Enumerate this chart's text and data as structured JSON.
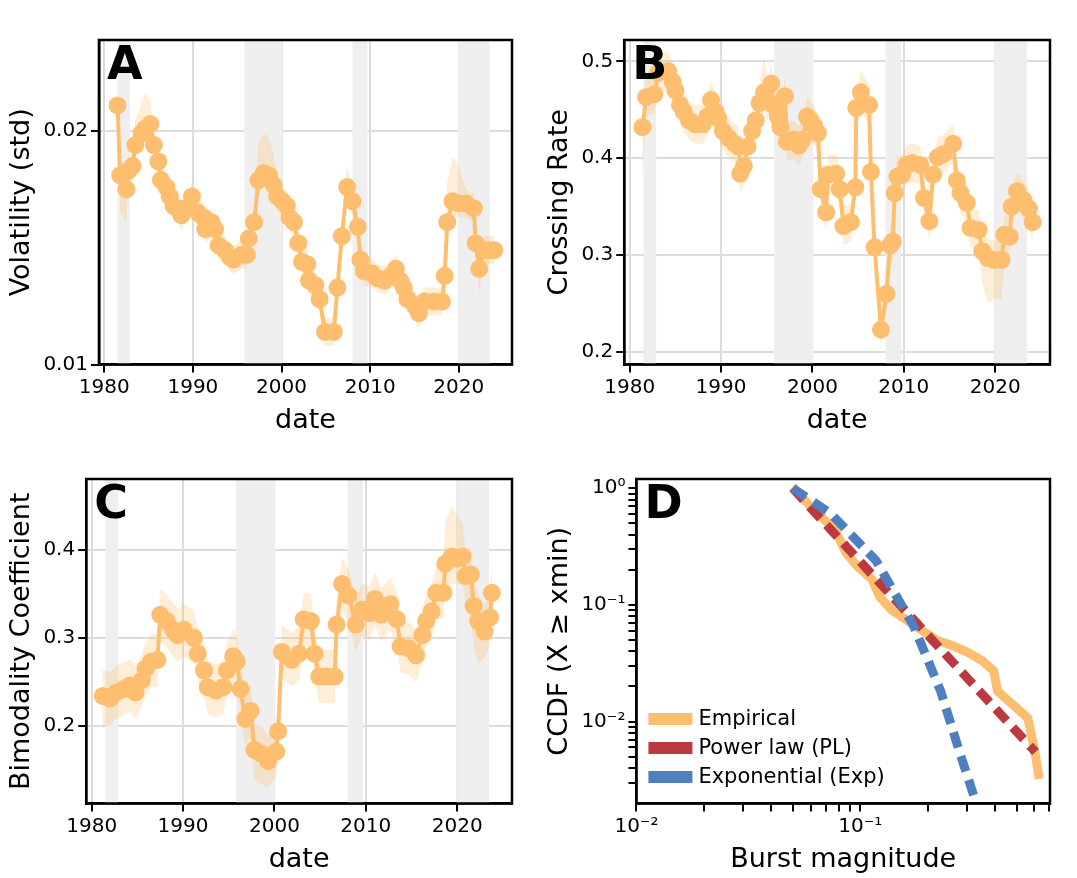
{
  "chart_data": [
    {
      "type": "line",
      "title": "A",
      "xlabel": "date",
      "ylabel": "Volatility (std)",
      "xlim": [
        1979.4,
        2026
      ],
      "xticks": [
        1980,
        1990,
        2000,
        2010,
        2020
      ],
      "ylim": [
        0.01,
        0.0239
      ],
      "yticks": [
        0.01,
        0.02
      ],
      "grid": true,
      "marker": "circle",
      "bands": [
        {
          "axis": "x",
          "from": 1981.5,
          "to": 1982.9,
          "color": "#efefef"
        },
        {
          "axis": "x",
          "from": 1995.8,
          "to": 2000.1,
          "color": "#efefef"
        },
        {
          "axis": "x",
          "from": 2008.0,
          "to": 2009.7,
          "color": "#efefef"
        },
        {
          "axis": "x",
          "from": 2019.9,
          "to": 2023.5,
          "color": "#efefef"
        }
      ],
      "series": [
        {
          "color": "#fdbf6f",
          "x": [
            1981.5,
            1981.8,
            1982.5,
            1982.7,
            1983.2,
            1983.5,
            1984.2,
            1984.6,
            1985.2,
            1985.6,
            1986.1,
            1986.4,
            1987.0,
            1987.4,
            1987.8,
            1988.2,
            1988.7,
            1989.3,
            1989.9,
            1990.6,
            1991.2,
            1991.4,
            1992.1,
            1992.5,
            1992.9,
            1993.6,
            1994.2,
            1994.6,
            1995.5,
            1996.1,
            1996.3,
            1996.9,
            1997.4,
            1998.0,
            1998.6,
            1999.1,
            1999.5,
            2000.1,
            2000.6,
            2000.9,
            2001.4,
            2001.9,
            2002.3,
            2002.9,
            2003.1,
            2003.8,
            2004.3,
            2004.9,
            2005.9,
            2006.3,
            2006.8,
            2007.4,
            2008.0,
            2008.6,
            2008.9,
            2009.3,
            2010.2,
            2010.8,
            2011.6,
            2012.3,
            2012.9,
            2013.4,
            2013.8,
            2014.2,
            2015.1,
            2015.5,
            2016.1,
            2017.2,
            2018.1,
            2018.4,
            2018.7,
            2019.3,
            2020.0,
            2020.8,
            2021.7,
            2021.9,
            2022.3,
            2022.8,
            2023.4,
            2024.0
          ],
          "values": [
            0.0211,
            0.0181,
            0.0175,
            0.0183,
            0.0185,
            0.0194,
            0.0199,
            0.0201,
            0.0203,
            0.0194,
            0.0187,
            0.0179,
            0.0176,
            0.0172,
            0.0168,
            0.0167,
            0.0164,
            0.0167,
            0.0172,
            0.0165,
            0.0163,
            0.0158,
            0.0161,
            0.0158,
            0.0151,
            0.0149,
            0.0146,
            0.0145,
            0.0147,
            0.0147,
            0.0154,
            0.0161,
            0.0179,
            0.0182,
            0.0181,
            0.0177,
            0.0172,
            0.017,
            0.0168,
            0.0163,
            0.0161,
            0.0152,
            0.0144,
            0.0143,
            0.0136,
            0.0134,
            0.0128,
            0.0114,
            0.0114,
            0.0133,
            0.0155,
            0.0176,
            0.017,
            0.0159,
            0.0145,
            0.014,
            0.0139,
            0.0137,
            0.0136,
            0.0138,
            0.0141,
            0.0136,
            0.0133,
            0.0128,
            0.0125,
            0.0122,
            0.0127,
            0.0127,
            0.0127,
            0.0138,
            0.0161,
            0.017,
            0.0169,
            0.0169,
            0.0167,
            0.0152,
            0.0141,
            0.0149,
            0.0149,
            0.0149
          ],
          "lower": [
            0.0205,
            0.0165,
            0.0161,
            0.0177,
            0.0179,
            0.0188,
            0.0193,
            0.0195,
            0.0197,
            0.0188,
            0.0181,
            0.0173,
            0.017,
            0.0166,
            0.0162,
            0.0161,
            0.0158,
            0.0161,
            0.0166,
            0.0159,
            0.0157,
            0.0152,
            0.0155,
            0.0152,
            0.0145,
            0.0143,
            0.014,
            0.0139,
            0.0141,
            0.0141,
            0.0148,
            0.0155,
            0.0173,
            0.0176,
            0.0175,
            0.0171,
            0.0166,
            0.0164,
            0.0162,
            0.0157,
            0.0155,
            0.0146,
            0.0138,
            0.0137,
            0.013,
            0.0128,
            0.0122,
            0.0108,
            0.0108,
            0.0127,
            0.0149,
            0.017,
            0.0164,
            0.0153,
            0.0139,
            0.0134,
            0.0133,
            0.0131,
            0.013,
            0.0132,
            0.0135,
            0.013,
            0.0127,
            0.0122,
            0.0119,
            0.0116,
            0.0121,
            0.0121,
            0.0121,
            0.0132,
            0.0155,
            0.0164,
            0.0163,
            0.0163,
            0.0161,
            0.0146,
            0.0131,
            0.0143,
            0.0143,
            0.0143
          ],
          "upper": [
            0.0217,
            0.0187,
            0.0181,
            0.0189,
            0.0191,
            0.0205,
            0.0212,
            0.0216,
            0.0213,
            0.02,
            0.0193,
            0.0185,
            0.0182,
            0.0178,
            0.0174,
            0.0173,
            0.017,
            0.0173,
            0.0178,
            0.0171,
            0.0169,
            0.0164,
            0.0167,
            0.0164,
            0.0157,
            0.0155,
            0.0152,
            0.0151,
            0.0153,
            0.0153,
            0.016,
            0.0167,
            0.0195,
            0.0199,
            0.0197,
            0.019,
            0.018,
            0.0176,
            0.0174,
            0.0169,
            0.0167,
            0.0158,
            0.015,
            0.0149,
            0.0142,
            0.014,
            0.0134,
            0.012,
            0.012,
            0.0139,
            0.0161,
            0.0185,
            0.0176,
            0.0165,
            0.0151,
            0.0146,
            0.0145,
            0.0143,
            0.0142,
            0.0144,
            0.0147,
            0.0142,
            0.0139,
            0.0134,
            0.0131,
            0.0128,
            0.0133,
            0.0133,
            0.0133,
            0.0144,
            0.0178,
            0.0189,
            0.0185,
            0.0175,
            0.0173,
            0.0158,
            0.0147,
            0.0155,
            0.0155,
            0.0155
          ]
        }
      ]
    },
    {
      "type": "line",
      "title": "B",
      "xlabel": "date",
      "ylabel": "Crossing Rate",
      "xlim": [
        1979.4,
        2026
      ],
      "xticks": [
        1980,
        1990,
        2000,
        2010,
        2020
      ],
      "ylim": [
        0.187,
        0.522
      ],
      "yticks": [
        0.2,
        0.3,
        0.4,
        0.5
      ],
      "grid": true,
      "marker": "circle",
      "bands": [
        {
          "axis": "x",
          "from": 1981.5,
          "to": 1982.9,
          "color": "#efefef"
        },
        {
          "axis": "x",
          "from": 1995.8,
          "to": 2000.1,
          "color": "#efefef"
        },
        {
          "axis": "x",
          "from": 2008.0,
          "to": 2009.7,
          "color": "#efefef"
        },
        {
          "axis": "x",
          "from": 2019.9,
          "to": 2023.5,
          "color": "#efefef"
        }
      ],
      "series": [
        {
          "color": "#fdbf6f",
          "x": [
            1981.4,
            1981.8,
            1982.7,
            1983.1,
            1984.2,
            1984.7,
            1985.0,
            1985.5,
            1985.9,
            1986.5,
            1987.2,
            1988.0,
            1988.5,
            1988.9,
            1989.4,
            1989.7,
            1990.2,
            1990.8,
            1991.5,
            1991.9,
            1992.1,
            1992.5,
            1992.9,
            1993.4,
            1993.8,
            1994.2,
            1994.7,
            1995.1,
            1995.5,
            1995.7,
            1996.2,
            1996.5,
            1997.0,
            1997.2,
            1997.9,
            1998.5,
            1998.9,
            1999.4,
            1999.8,
            2000.2,
            2000.6,
            2000.9,
            2001.5,
            2001.7,
            2002.6,
            2003.0,
            2003.4,
            2004.2,
            2004.7,
            2004.8,
            2005.3,
            2006.2,
            2006.4,
            2006.8,
            2007.5,
            2008.1,
            2008.5,
            2008.8,
            2009.0,
            2009.3,
            2009.8,
            2010.3,
            2010.9,
            2011.8,
            2012.2,
            2012.8,
            2013.2,
            2013.7,
            2014.3,
            2015.4,
            2015.8,
            2016.2,
            2016.9,
            2017.3,
            2018.2,
            2018.6,
            2019.2,
            2019.9,
            2020.7,
            2021.0,
            2021.6,
            2021.8,
            2022.4,
            2023.1,
            2023.7,
            2024.1
          ],
          "values": [
            0.432,
            0.463,
            0.466,
            0.488,
            0.49,
            0.479,
            0.47,
            0.455,
            0.448,
            0.439,
            0.435,
            0.435,
            0.443,
            0.46,
            0.448,
            0.441,
            0.428,
            0.421,
            0.415,
            0.412,
            0.384,
            0.392,
            0.412,
            0.428,
            0.439,
            0.457,
            0.468,
            0.459,
            0.477,
            0.455,
            0.443,
            0.432,
            0.464,
            0.417,
            0.419,
            0.413,
            0.419,
            0.443,
            0.439,
            0.433,
            0.426,
            0.368,
            0.344,
            0.383,
            0.384,
            0.368,
            0.33,
            0.334,
            0.37,
            0.452,
            0.468,
            0.455,
            0.386,
            0.308,
            0.223,
            0.26,
            0.31,
            0.314,
            0.364,
            0.381,
            0.383,
            0.393,
            0.395,
            0.393,
            0.359,
            0.335,
            0.383,
            0.401,
            0.404,
            0.415,
            0.377,
            0.364,
            0.354,
            0.328,
            0.326,
            0.304,
            0.297,
            0.295,
            0.295,
            0.321,
            0.319,
            0.35,
            0.366,
            0.357,
            0.348,
            0.334
          ],
          "lower": [
            0.38,
            0.443,
            0.446,
            0.468,
            0.47,
            0.459,
            0.45,
            0.435,
            0.428,
            0.419,
            0.415,
            0.415,
            0.423,
            0.44,
            0.428,
            0.421,
            0.408,
            0.401,
            0.395,
            0.392,
            0.364,
            0.372,
            0.392,
            0.408,
            0.419,
            0.437,
            0.448,
            0.439,
            0.457,
            0.435,
            0.423,
            0.412,
            0.444,
            0.397,
            0.399,
            0.393,
            0.399,
            0.423,
            0.419,
            0.413,
            0.406,
            0.348,
            0.324,
            0.363,
            0.364,
            0.348,
            0.31,
            0.314,
            0.35,
            0.432,
            0.448,
            0.435,
            0.366,
            0.288,
            0.205,
            0.24,
            0.29,
            0.294,
            0.344,
            0.361,
            0.363,
            0.373,
            0.375,
            0.373,
            0.339,
            0.315,
            0.363,
            0.381,
            0.384,
            0.395,
            0.357,
            0.344,
            0.334,
            0.308,
            0.306,
            0.27,
            0.25,
            0.255,
            0.255,
            0.29,
            0.299,
            0.33,
            0.346,
            0.337,
            0.328,
            0.314
          ],
          "upper": [
            0.452,
            0.483,
            0.486,
            0.508,
            0.51,
            0.499,
            0.49,
            0.475,
            0.468,
            0.459,
            0.455,
            0.455,
            0.463,
            0.48,
            0.468,
            0.461,
            0.448,
            0.441,
            0.435,
            0.432,
            0.404,
            0.412,
            0.432,
            0.448,
            0.459,
            0.477,
            0.505,
            0.479,
            0.497,
            0.475,
            0.463,
            0.452,
            0.484,
            0.437,
            0.439,
            0.433,
            0.439,
            0.463,
            0.459,
            0.453,
            0.446,
            0.388,
            0.364,
            0.403,
            0.404,
            0.388,
            0.35,
            0.354,
            0.39,
            0.472,
            0.49,
            0.475,
            0.406,
            0.328,
            0.243,
            0.28,
            0.33,
            0.334,
            0.384,
            0.401,
            0.403,
            0.413,
            0.415,
            0.413,
            0.379,
            0.355,
            0.403,
            0.421,
            0.424,
            0.435,
            0.397,
            0.384,
            0.374,
            0.348,
            0.346,
            0.324,
            0.317,
            0.315,
            0.315,
            0.341,
            0.339,
            0.37,
            0.386,
            0.377,
            0.368,
            0.354
          ]
        }
      ]
    },
    {
      "type": "line",
      "title": "C",
      "xlabel": "date",
      "ylabel": "Bimodality Coefficient",
      "xlim": [
        1979.4,
        2026
      ],
      "xticks": [
        1980,
        1990,
        2000,
        2010,
        2020
      ],
      "ylim": [
        0.112,
        0.48
      ],
      "yticks": [
        0.2,
        0.3,
        0.4
      ],
      "grid": true,
      "marker": "circle",
      "bands": [
        {
          "axis": "x",
          "from": 1981.5,
          "to": 1982.9,
          "color": "#efefef"
        },
        {
          "axis": "x",
          "from": 1995.8,
          "to": 2000.1,
          "color": "#efefef"
        },
        {
          "axis": "x",
          "from": 2008.0,
          "to": 2009.7,
          "color": "#efefef"
        },
        {
          "axis": "x",
          "from": 2019.9,
          "to": 2023.5,
          "color": "#efefef"
        }
      ],
      "series": [
        {
          "color": "#fdbf6f",
          "x": [
            1981.2,
            1982.0,
            1982.7,
            1983.5,
            1984.2,
            1984.8,
            1985.5,
            1985.9,
            1986.5,
            1987.2,
            1987.5,
            1988.2,
            1988.9,
            1989.4,
            1990.1,
            1991.2,
            1991.6,
            1992.3,
            1992.7,
            1993.6,
            1994.4,
            1994.8,
            1995.5,
            1995.9,
            1996.3,
            1996.8,
            1997.4,
            1997.8,
            1998.5,
            1999.3,
            2000.2,
            2000.4,
            2000.8,
            2001.9,
            2002.7,
            2003.2,
            2004.0,
            2004.4,
            2004.9,
            2005.7,
            2006.6,
            2006.8,
            2007.4,
            2008.1,
            2008.9,
            2009.6,
            2010.4,
            2011.0,
            2011.7,
            2012.7,
            2013.4,
            2013.8,
            2014.7,
            2015.5,
            2016.2,
            2016.6,
            2017.2,
            2017.7,
            2018.5,
            2018.7,
            2019.4,
            2020.0,
            2020.6,
            2020.9,
            2021.5,
            2021.8,
            2022.3,
            2023.0,
            2023.6,
            2023.8
          ],
          "values": [
            0.234,
            0.231,
            0.238,
            0.242,
            0.246,
            0.238,
            0.252,
            0.265,
            0.273,
            0.275,
            0.326,
            0.319,
            0.309,
            0.303,
            0.309,
            0.3,
            0.282,
            0.263,
            0.244,
            0.24,
            0.244,
            0.263,
            0.279,
            0.273,
            0.242,
            0.208,
            0.217,
            0.173,
            0.169,
            0.16,
            0.171,
            0.194,
            0.284,
            0.275,
            0.282,
            0.321,
            0.319,
            0.282,
            0.256,
            0.256,
            0.256,
            0.315,
            0.361,
            0.348,
            0.315,
            0.332,
            0.328,
            0.344,
            0.326,
            0.338,
            0.321,
            0.29,
            0.288,
            0.28,
            0.303,
            0.319,
            0.33,
            0.351,
            0.351,
            0.384,
            0.392,
            0.39,
            0.392,
            0.37,
            0.372,
            0.336,
            0.319,
            0.307,
            0.323,
            0.351
          ],
          "lower": [
            0.198,
            0.201,
            0.208,
            0.212,
            0.216,
            0.208,
            0.222,
            0.235,
            0.243,
            0.245,
            0.296,
            0.289,
            0.279,
            0.273,
            0.279,
            0.27,
            0.252,
            0.233,
            0.214,
            0.21,
            0.214,
            0.233,
            0.249,
            0.243,
            0.212,
            0.178,
            0.187,
            0.14,
            0.135,
            0.13,
            0.141,
            0.164,
            0.254,
            0.245,
            0.252,
            0.291,
            0.289,
            0.252,
            0.226,
            0.226,
            0.226,
            0.285,
            0.331,
            0.318,
            0.285,
            0.302,
            0.298,
            0.314,
            0.296,
            0.308,
            0.291,
            0.26,
            0.258,
            0.25,
            0.273,
            0.289,
            0.3,
            0.321,
            0.321,
            0.354,
            0.362,
            0.36,
            0.362,
            0.34,
            0.32,
            0.29,
            0.27,
            0.277,
            0.293,
            0.321
          ],
          "upper": [
            0.264,
            0.261,
            0.268,
            0.272,
            0.276,
            0.268,
            0.282,
            0.295,
            0.303,
            0.305,
            0.356,
            0.349,
            0.339,
            0.333,
            0.339,
            0.33,
            0.312,
            0.293,
            0.274,
            0.27,
            0.274,
            0.293,
            0.309,
            0.303,
            0.272,
            0.238,
            0.247,
            0.203,
            0.199,
            0.19,
            0.201,
            0.224,
            0.314,
            0.305,
            0.312,
            0.351,
            0.349,
            0.312,
            0.286,
            0.286,
            0.286,
            0.345,
            0.391,
            0.378,
            0.345,
            0.362,
            0.358,
            0.374,
            0.356,
            0.368,
            0.351,
            0.32,
            0.318,
            0.31,
            0.333,
            0.349,
            0.36,
            0.381,
            0.381,
            0.43,
            0.45,
            0.44,
            0.43,
            0.4,
            0.402,
            0.366,
            0.349,
            0.337,
            0.353,
            0.381
          ]
        }
      ]
    },
    {
      "type": "line",
      "title": "D",
      "xlabel": "Burst magnitude",
      "ylabel": "CCDF (X ≥ xmin)",
      "log": "xy",
      "grid": false,
      "legend": "bottom left",
      "marker": "none",
      "xlim": [
        0.01,
        0.705
      ],
      "ylim": [
        0.00198,
        1.2
      ],
      "xticks": [
        {
          "value": 0.01,
          "label": "10⁻²"
        },
        {
          "value": 0.02,
          "label": null
        },
        {
          "value": 0.03,
          "label": null
        },
        {
          "value": 0.04,
          "label": null
        },
        {
          "value": 0.05,
          "label": null
        },
        {
          "value": 0.06,
          "label": null
        },
        {
          "value": 0.07,
          "label": null
        },
        {
          "value": 0.08,
          "label": null
        },
        {
          "value": 0.09,
          "label": null
        },
        {
          "value": 0.1,
          "label": "10⁻¹"
        },
        {
          "value": 0.2,
          "label": null
        },
        {
          "value": 0.3,
          "label": null
        },
        {
          "value": 0.4,
          "label": null
        },
        {
          "value": 0.5,
          "label": null
        },
        {
          "value": 0.6,
          "label": null
        },
        {
          "value": 0.7,
          "label": null
        }
      ],
      "yticks": [
        {
          "value": 0.003,
          "label": null
        },
        {
          "value": 0.004,
          "label": null
        },
        {
          "value": 0.005,
          "label": null
        },
        {
          "value": 0.006,
          "label": null
        },
        {
          "value": 0.007,
          "label": null
        },
        {
          "value": 0.008,
          "label": null
        },
        {
          "value": 0.009,
          "label": null
        },
        {
          "value": 0.01,
          "label": "10⁻²"
        },
        {
          "value": 0.02,
          "label": null
        },
        {
          "value": 0.03,
          "label": null
        },
        {
          "value": 0.04,
          "label": null
        },
        {
          "value": 0.05,
          "label": null
        },
        {
          "value": 0.06,
          "label": null
        },
        {
          "value": 0.07,
          "label": null
        },
        {
          "value": 0.08,
          "label": null
        },
        {
          "value": 0.09,
          "label": null
        },
        {
          "value": 0.1,
          "label": "10⁻¹"
        },
        {
          "value": 0.2,
          "label": null
        },
        {
          "value": 0.3,
          "label": null
        },
        {
          "value": 0.4,
          "label": null
        },
        {
          "value": 0.5,
          "label": null
        },
        {
          "value": 0.6,
          "label": null
        },
        {
          "value": 0.7,
          "label": null
        },
        {
          "value": 0.8,
          "label": null
        },
        {
          "value": 0.9,
          "label": null
        },
        {
          "value": 1,
          "label": "10⁰"
        }
      ],
      "series": [
        {
          "name": "Empirical",
          "color": "#fdbf6f",
          "line_style": "solid",
          "x": [
            0.0499,
            0.063,
            0.0767,
            0.0863,
            0.0968,
            0.113,
            0.122,
            0.138,
            0.161,
            0.188,
            0.22,
            0.257,
            0.301,
            0.351,
            0.395,
            0.411,
            0.48,
            0.561,
            0.583,
            0.607,
            0.631
          ],
          "values": [
            1.03,
            0.627,
            0.449,
            0.281,
            0.216,
            0.165,
            0.118,
            0.0905,
            0.0741,
            0.0606,
            0.0497,
            0.0449,
            0.0393,
            0.0332,
            0.0272,
            0.0182,
            0.014,
            0.0107,
            0.00766,
            0.00513,
            0.00322
          ]
        },
        {
          "name": "Power law (PL)",
          "color": "#bc3a3f",
          "line_style": "dashed",
          "x": [
            0.0499,
            0.174,
            0.607
          ],
          "values": [
            1.0,
            0.074,
            0.00548
          ]
        },
        {
          "name": "Exponential (Exp)",
          "color": "#4e7fc0",
          "line_style": "dashed",
          "x": [
            0.0499,
            0.0738,
            0.118,
            0.174,
            0.229,
            0.278,
            0.33
          ],
          "values": [
            1.0,
            0.606,
            0.238,
            0.0648,
            0.0182,
            0.00548,
            0.002
          ]
        }
      ]
    }
  ]
}
